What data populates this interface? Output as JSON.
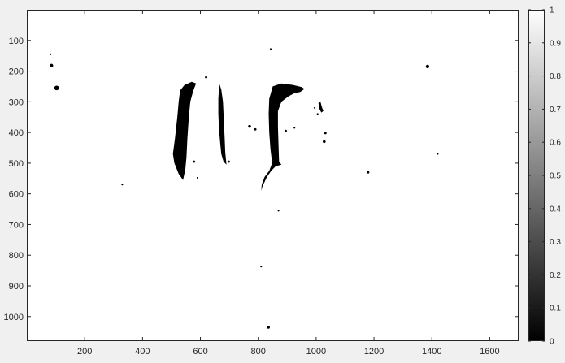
{
  "chart_data": {
    "type": "heatmap",
    "colormap": "gray",
    "title": "",
    "xlabel": "",
    "ylabel": "",
    "xlim": [
      0,
      1700
    ],
    "ylim": [
      1080,
      0
    ],
    "y_direction": "reversed",
    "grid": false,
    "x_ticks": [
      "200",
      "400",
      "600",
      "800",
      "1000",
      "1200",
      "1400",
      "1600"
    ],
    "y_ticks": [
      "100",
      "200",
      "300",
      "400",
      "500",
      "600",
      "700",
      "800",
      "900",
      "1000"
    ],
    "colorbar": {
      "placement": "right",
      "range": [
        0,
        1
      ],
      "ticks": [
        "0",
        "0.1",
        "0.2",
        "0.3",
        "0.4",
        "0.5",
        "0.6",
        "0.7",
        "0.8",
        "0.9",
        "1"
      ]
    },
    "background_value": 1,
    "dark_regions": [
      {
        "name": "left-figure-left-lock",
        "value": 0,
        "points": [
          [
            530,
            263
          ],
          [
            545,
            245
          ],
          [
            570,
            235
          ],
          [
            585,
            240
          ],
          [
            575,
            265
          ],
          [
            565,
            300
          ],
          [
            560,
            350
          ],
          [
            555,
            420
          ],
          [
            552,
            480
          ],
          [
            548,
            520
          ],
          [
            540,
            555
          ],
          [
            525,
            535
          ],
          [
            510,
            500
          ],
          [
            505,
            470
          ],
          [
            512,
            420
          ],
          [
            520,
            350
          ],
          [
            525,
            300
          ]
        ]
      },
      {
        "name": "left-figure-right-lock",
        "value": 0,
        "points": [
          [
            665,
            240
          ],
          [
            672,
            260
          ],
          [
            678,
            300
          ],
          [
            680,
            340
          ],
          [
            682,
            380
          ],
          [
            684,
            420
          ],
          [
            686,
            465
          ],
          [
            690,
            505
          ],
          [
            680,
            495
          ],
          [
            672,
            470
          ],
          [
            668,
            430
          ],
          [
            664,
            385
          ],
          [
            662,
            340
          ],
          [
            662,
            290
          ]
        ]
      },
      {
        "name": "right-figure-hair",
        "value": 0,
        "points": [
          [
            850,
            250
          ],
          [
            880,
            240
          ],
          [
            920,
            245
          ],
          [
            950,
            252
          ],
          [
            960,
            258
          ],
          [
            945,
            268
          ],
          [
            925,
            272
          ],
          [
            905,
            282
          ],
          [
            880,
            300
          ],
          [
            868,
            330
          ],
          [
            868,
            380
          ],
          [
            870,
            440
          ],
          [
            872,
            495
          ],
          [
            880,
            505
          ],
          [
            860,
            510
          ],
          [
            845,
            525
          ],
          [
            830,
            545
          ],
          [
            815,
            575
          ],
          [
            810,
            590
          ],
          [
            812,
            570
          ],
          [
            822,
            545
          ],
          [
            838,
            525
          ],
          [
            848,
            500
          ],
          [
            842,
            455
          ],
          [
            838,
            400
          ],
          [
            836,
            340
          ],
          [
            838,
            290
          ]
        ]
      },
      {
        "name": "right-figure-right-lock",
        "value": 0,
        "points": [
          [
            1008,
            305
          ],
          [
            1015,
            300
          ],
          [
            1020,
            318
          ],
          [
            1025,
            330
          ],
          [
            1018,
            335
          ],
          [
            1012,
            325
          ]
        ]
      }
    ],
    "dark_specks": [
      [
        82,
        145,
        3
      ],
      [
        85,
        182,
        6
      ],
      [
        103,
        255,
        8
      ],
      [
        330,
        570,
        3
      ],
      [
        620,
        220,
        4
      ],
      [
        843,
        128,
        3
      ],
      [
        770,
        380,
        5
      ],
      [
        790,
        390,
        4
      ],
      [
        895,
        395,
        4
      ],
      [
        1028,
        430,
        5
      ],
      [
        1032,
        402,
        4
      ],
      [
        1180,
        530,
        4
      ],
      [
        1385,
        185,
        6
      ],
      [
        1420,
        470,
        3
      ],
      [
        810,
        837,
        3
      ],
      [
        835,
        1035,
        5
      ],
      [
        870,
        655,
        3
      ],
      [
        578,
        495,
        4
      ],
      [
        590,
        548,
        3
      ],
      [
        698,
        495,
        4
      ],
      [
        514,
        465,
        3
      ],
      [
        925,
        385,
        3
      ],
      [
        995,
        320,
        3
      ],
      [
        1005,
        340,
        3
      ]
    ]
  }
}
